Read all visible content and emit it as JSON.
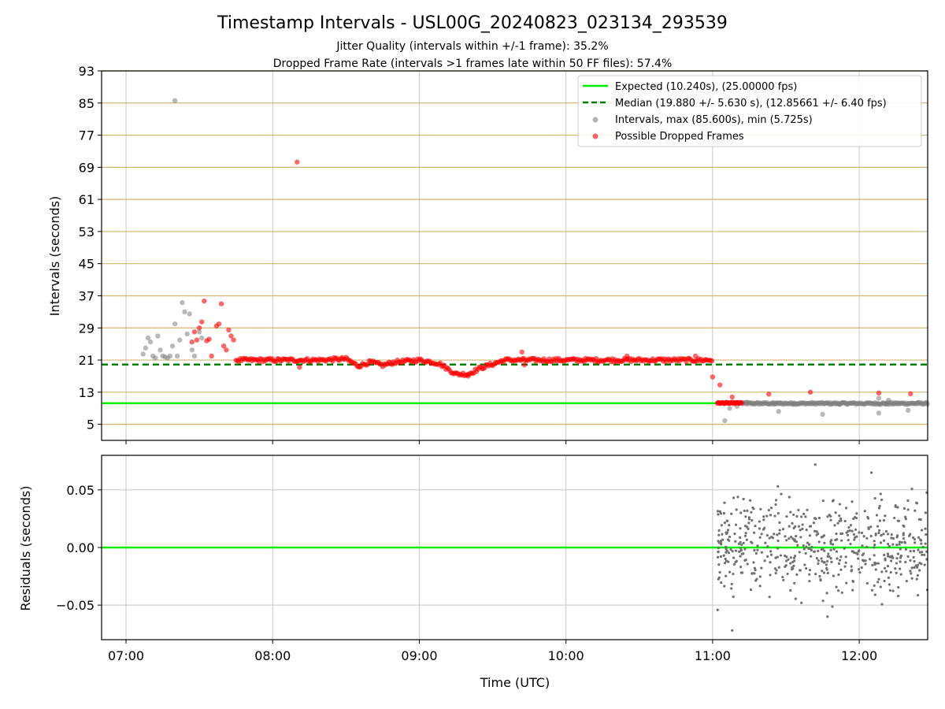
{
  "title": "Timestamp Intervals - USL00G_20240823_023134_293539",
  "subtitle_line1": "Jitter Quality (intervals within +/-1 frame): 35.2%",
  "subtitle_line2": "Dropped Frame Rate (intervals >1 frames late within 50 FF files): 57.4%",
  "colors": {
    "expected": "#00ee00",
    "median": "#008000",
    "intervals": "#808080",
    "dropped": "#ff0000",
    "hgrid_top": "#d2b46e",
    "grid": "#c8c8c8"
  },
  "chart_data": [
    {
      "type": "scatter",
      "ylabel": "Intervals (seconds)",
      "xlim": [
        "06:50",
        "12:28"
      ],
      "ylim": [
        1,
        93
      ],
      "yticks": [
        5,
        13,
        21,
        29,
        37,
        45,
        53,
        61,
        69,
        77,
        85,
        93
      ],
      "ytick_labels": [
        "5",
        "13",
        "21",
        "29",
        "37",
        "45",
        "53",
        "61",
        "69",
        "77",
        "85",
        "93"
      ],
      "grid": true,
      "legend_position": "top-right",
      "legend": [
        "Expected (10.240s), (25.00000 fps)",
        "Median (19.880 +/- 5.630 s), (12.85661 +/- 6.40 fps)",
        "Intervals, max (85.600s), min (5.725s)",
        "Possible Dropped Frames"
      ],
      "expected_value": 10.24,
      "median_value": 19.88,
      "intervals_max": 85.6,
      "intervals_min": 5.725,
      "series": [
        {
          "name": "Intervals, max (85.600s), min (5.725s)",
          "points": [
            [
              "07:20",
              85.6
            ],
            [
              "07:07",
              22.5
            ],
            [
              "07:08",
              24
            ],
            [
              "07:09",
              26.5
            ],
            [
              "07:10",
              25.5
            ],
            [
              "07:11",
              22
            ],
            [
              "07:12",
              21.5
            ],
            [
              "07:13",
              27
            ],
            [
              "07:14",
              23.5
            ],
            [
              "07:15",
              22
            ],
            [
              "07:16",
              21.8
            ],
            [
              "07:17",
              21.5
            ],
            [
              "07:18",
              22
            ],
            [
              "07:19",
              24.5
            ],
            [
              "07:20",
              30
            ],
            [
              "07:21",
              22
            ],
            [
              "07:22",
              26
            ],
            [
              "07:23",
              35.3
            ],
            [
              "07:24",
              33
            ],
            [
              "07:25",
              27.5
            ],
            [
              "07:26",
              32.5
            ],
            [
              "07:27",
              23.5
            ],
            [
              "07:28",
              22
            ],
            [
              "07:30",
              28
            ],
            [
              "07:31",
              26.5
            ],
            [
              "11:05",
              5.9
            ],
            [
              "11:07",
              9
            ],
            [
              "11:10",
              9.5
            ],
            [
              "11:14",
              10.5
            ],
            [
              "11:25",
              10
            ],
            [
              "11:27",
              8.2
            ],
            [
              "11:33",
              10.3
            ],
            [
              "11:45",
              7.5
            ],
            [
              "11:52",
              10
            ],
            [
              "12:08",
              7.8
            ],
            [
              "12:08",
              11.5
            ],
            [
              "12:11",
              10
            ],
            [
              "12:12",
              11
            ],
            [
              "12:20",
              8.5
            ],
            [
              "12:24",
              10.4
            ]
          ]
        },
        {
          "name": "Possible Dropped Frames",
          "points": [
            [
              "07:27",
              25.5
            ],
            [
              "07:28",
              28
            ],
            [
              "07:29",
              26
            ],
            [
              "07:30",
              29
            ],
            [
              "07:31",
              30.5
            ],
            [
              "07:32",
              35.7
            ],
            [
              "07:33",
              25.8
            ],
            [
              "07:34",
              26.2
            ],
            [
              "07:35",
              22
            ],
            [
              "07:37",
              29.5
            ],
            [
              "07:38",
              30
            ],
            [
              "07:39",
              35
            ],
            [
              "07:40",
              24.5
            ],
            [
              "07:41",
              23.5
            ],
            [
              "07:42",
              28.5
            ],
            [
              "07:43",
              27
            ],
            [
              "07:44",
              26
            ],
            [
              "08:10",
              70.3
            ],
            [
              "08:11",
              19.2
            ],
            [
              "09:20",
              17
            ],
            [
              "09:42",
              23
            ],
            [
              "09:43",
              19.8
            ],
            [
              "10:25",
              22
            ],
            [
              "10:53",
              22
            ],
            [
              "11:00",
              16.8
            ],
            [
              "11:03",
              14.8
            ],
            [
              "11:08",
              11.8
            ],
            [
              "11:23",
              12.5
            ],
            [
              "11:40",
              13
            ],
            [
              "12:08",
              12.8
            ],
            [
              "12:21",
              12.6
            ]
          ],
          "dense_band": [
            [
              "07:45",
              21
            ],
            [
              "08:00",
              21
            ],
            [
              "08:20",
              21
            ],
            [
              "08:30",
              21.3
            ],
            [
              "08:35",
              19.5
            ],
            [
              "08:40",
              20.5
            ],
            [
              "08:45",
              19.7
            ],
            [
              "08:50",
              20.5
            ],
            [
              "09:00",
              21
            ],
            [
              "09:08",
              20.2
            ],
            [
              "09:15",
              17.5
            ],
            [
              "09:20",
              17.5
            ],
            [
              "09:25",
              19
            ],
            [
              "09:30",
              20
            ],
            [
              "09:35",
              21
            ],
            [
              "10:00",
              21
            ],
            [
              "10:30",
              21
            ],
            [
              "11:00",
              21
            ]
          ],
          "dense_band_low": [
            [
              "11:02",
              10.3
            ],
            [
              "11:12",
              10.3
            ]
          ]
        }
      ]
    },
    {
      "type": "scatter",
      "xlabel": "Time (UTC)",
      "ylabel": "Residuals (seconds)",
      "xlim": [
        "06:50",
        "12:28"
      ],
      "ylim": [
        -0.08,
        0.08
      ],
      "yticks": [
        -0.05,
        0.0,
        0.05
      ],
      "ytick_labels": [
        "−0.05",
        "0.00",
        "0.05"
      ],
      "xticks": [
        "07:00",
        "08:00",
        "09:00",
        "10:00",
        "11:00",
        "12:00"
      ],
      "grid": true,
      "zero_line_color": "#00ee00",
      "residual_x_range": [
        "11:02",
        "12:28"
      ],
      "residual_spread": 0.03,
      "residual_extremes": [
        0.072,
        -0.072,
        0.065,
        -0.06
      ]
    }
  ]
}
